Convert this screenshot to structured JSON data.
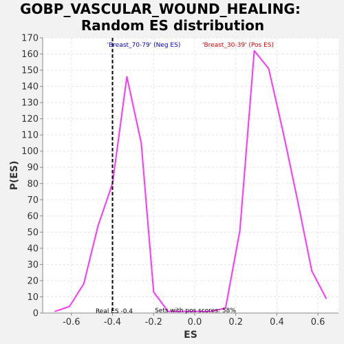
{
  "chart_data": {
    "type": "line",
    "title_line1": "GOBP_VASCULAR_WOUND_HEALING:",
    "title_line2": "Random ES distribution",
    "xlabel": "ES",
    "ylabel": "P(ES)",
    "xlim": [
      -0.74,
      0.7
    ],
    "ylim": [
      0,
      170
    ],
    "xticks": [
      -0.6,
      -0.4,
      -0.2,
      0.0,
      0.2,
      0.4,
      0.6
    ],
    "xtick_labels": [
      "-0.6",
      "-0.4",
      "-0.2",
      "0.0",
      "0.2",
      "0.4",
      "0.6"
    ],
    "yticks": [
      0,
      10,
      20,
      30,
      40,
      50,
      60,
      70,
      80,
      90,
      100,
      110,
      120,
      130,
      140,
      150,
      160,
      170
    ],
    "grid": true,
    "series": [
      {
        "color": "#ff33ff",
        "x": [
          -0.68,
          -0.61,
          -0.54,
          -0.47,
          -0.4,
          -0.33,
          -0.26,
          -0.2,
          -0.13,
          -0.06,
          0.01,
          0.08,
          0.15,
          0.22,
          0.29,
          0.36,
          0.43,
          0.5,
          0.57,
          0.64
        ],
        "y": [
          1,
          4,
          18,
          54,
          80,
          146,
          105,
          13,
          1,
          1,
          1,
          1,
          3,
          51,
          162,
          151,
          112,
          70,
          26,
          9
        ]
      }
    ],
    "real_es": -0.4,
    "real_es_label": "Real ES -0.4",
    "sets_label": "Sets with pos scores: 58%",
    "neg_label": "'Breast_70-79' (Neg ES)",
    "neg_color": "#0000cc",
    "pos_label": "'Breast_30-39' (Pos ES)",
    "pos_color": "#dd0000"
  }
}
